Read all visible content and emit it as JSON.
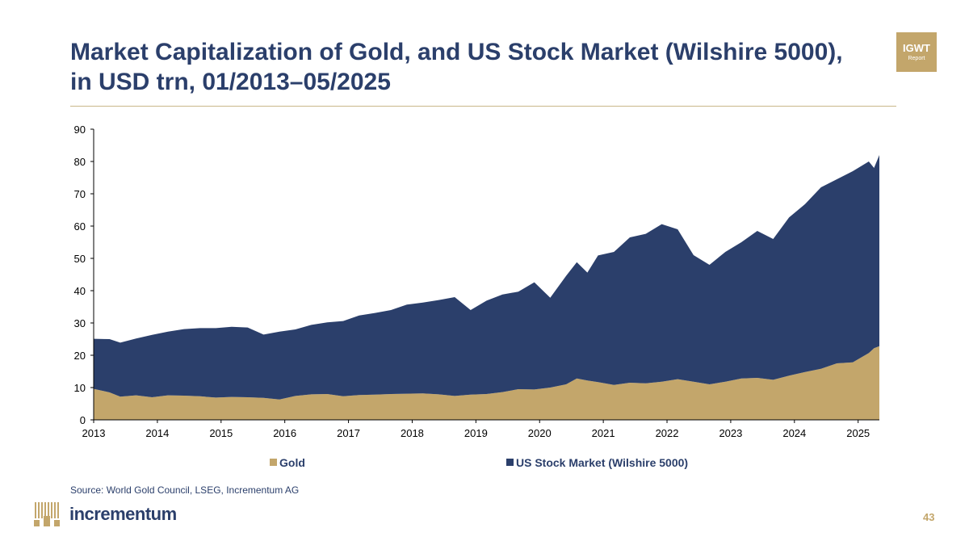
{
  "header": {
    "title": "Market Capitalization of Gold, and US Stock Market (Wilshire 5000), in USD trn, 01/2013–05/2025",
    "badge_line1": "IGWT",
    "badge_line2": "Report"
  },
  "footer": {
    "source": "Source: World Gold Council, LSEG, Incrementum AG",
    "brand": "incrementum",
    "page_number": "43"
  },
  "colors": {
    "gold": "#c3a66b",
    "stock": "#2b3f6b",
    "title": "#2b3f6b",
    "accent": "#c3a66b"
  },
  "chart_data": {
    "type": "area",
    "stacked": true,
    "title": "Market Capitalization of Gold, and US Stock Market (Wilshire 5000), in USD trn, 01/2013–05/2025",
    "xlabel": "",
    "ylabel": "",
    "ylim": [
      0,
      90
    ],
    "yticks": [
      0,
      10,
      20,
      30,
      40,
      50,
      60,
      70,
      80,
      90
    ],
    "x_range": [
      "2013-01",
      "2025-05"
    ],
    "xticks": [
      "2013",
      "2014",
      "2015",
      "2016",
      "2017",
      "2018",
      "2019",
      "2020",
      "2021",
      "2022",
      "2023",
      "2024",
      "2025"
    ],
    "legend_position": "bottom",
    "grid": false,
    "series": [
      {
        "name": "Gold",
        "color": "#c3a66b",
        "points": [
          [
            "2013-01",
            9.6
          ],
          [
            "2013-04",
            8.5
          ],
          [
            "2013-06",
            7.2
          ],
          [
            "2013-09",
            7.6
          ],
          [
            "2013-12",
            7.0
          ],
          [
            "2014-03",
            7.6
          ],
          [
            "2014-06",
            7.5
          ],
          [
            "2014-09",
            7.3
          ],
          [
            "2014-12",
            6.9
          ],
          [
            "2015-03",
            7.1
          ],
          [
            "2015-06",
            7.0
          ],
          [
            "2015-09",
            6.8
          ],
          [
            "2015-12",
            6.3
          ],
          [
            "2016-03",
            7.4
          ],
          [
            "2016-06",
            7.9
          ],
          [
            "2016-09",
            8.0
          ],
          [
            "2016-12",
            7.3
          ],
          [
            "2017-03",
            7.7
          ],
          [
            "2017-06",
            7.8
          ],
          [
            "2017-09",
            8.0
          ],
          [
            "2017-12",
            8.1
          ],
          [
            "2018-03",
            8.2
          ],
          [
            "2018-06",
            7.9
          ],
          [
            "2018-09",
            7.4
          ],
          [
            "2018-12",
            7.8
          ],
          [
            "2019-03",
            8.0
          ],
          [
            "2019-06",
            8.6
          ],
          [
            "2019-09",
            9.5
          ],
          [
            "2019-12",
            9.4
          ],
          [
            "2020-03",
            10.0
          ],
          [
            "2020-06",
            11.0
          ],
          [
            "2020-08",
            12.8
          ],
          [
            "2020-10",
            12.2
          ],
          [
            "2020-12",
            11.7
          ],
          [
            "2021-03",
            10.8
          ],
          [
            "2021-06",
            11.5
          ],
          [
            "2021-09",
            11.3
          ],
          [
            "2021-12",
            11.8
          ],
          [
            "2022-03",
            12.6
          ],
          [
            "2022-06",
            11.8
          ],
          [
            "2022-09",
            11.0
          ],
          [
            "2022-12",
            11.8
          ],
          [
            "2023-03",
            12.8
          ],
          [
            "2023-06",
            13.0
          ],
          [
            "2023-09",
            12.4
          ],
          [
            "2023-12",
            13.7
          ],
          [
            "2024-03",
            14.8
          ],
          [
            "2024-06",
            15.8
          ],
          [
            "2024-09",
            17.5
          ],
          [
            "2024-12",
            17.8
          ],
          [
            "2025-03",
            20.7
          ],
          [
            "2025-04",
            22.2
          ],
          [
            "2025-05",
            22.8
          ]
        ]
      },
      {
        "name": "US Stock Market (Wilshire 5000)",
        "color": "#2b3f6b",
        "points": [
          [
            "2013-01",
            15.5
          ],
          [
            "2013-04",
            16.5
          ],
          [
            "2013-06",
            16.7
          ],
          [
            "2013-09",
            17.6
          ],
          [
            "2013-12",
            19.3
          ],
          [
            "2014-03",
            19.7
          ],
          [
            "2014-06",
            20.6
          ],
          [
            "2014-09",
            21.1
          ],
          [
            "2014-12",
            21.5
          ],
          [
            "2015-03",
            21.7
          ],
          [
            "2015-06",
            21.6
          ],
          [
            "2015-09",
            19.6
          ],
          [
            "2015-12",
            21.0
          ],
          [
            "2016-03",
            20.6
          ],
          [
            "2016-06",
            21.5
          ],
          [
            "2016-09",
            22.2
          ],
          [
            "2016-12",
            23.3
          ],
          [
            "2017-03",
            24.6
          ],
          [
            "2017-06",
            25.3
          ],
          [
            "2017-09",
            26.0
          ],
          [
            "2017-12",
            27.6
          ],
          [
            "2018-03",
            28.1
          ],
          [
            "2018-06",
            29.2
          ],
          [
            "2018-09",
            30.6
          ],
          [
            "2018-12",
            26.2
          ],
          [
            "2019-03",
            28.9
          ],
          [
            "2019-06",
            30.2
          ],
          [
            "2019-09",
            30.2
          ],
          [
            "2019-12",
            33.2
          ],
          [
            "2020-03",
            27.8
          ],
          [
            "2020-06",
            33.6
          ],
          [
            "2020-08",
            36.0
          ],
          [
            "2020-10",
            33.4
          ],
          [
            "2020-12",
            39.2
          ],
          [
            "2021-03",
            41.2
          ],
          [
            "2021-06",
            45.0
          ],
          [
            "2021-09",
            46.3
          ],
          [
            "2021-12",
            48.8
          ],
          [
            "2022-03",
            46.4
          ],
          [
            "2022-06",
            39.2
          ],
          [
            "2022-09",
            37.0
          ],
          [
            "2022-12",
            40.2
          ],
          [
            "2023-03",
            42.2
          ],
          [
            "2023-06",
            45.5
          ],
          [
            "2023-09",
            43.6
          ],
          [
            "2023-12",
            49.0
          ],
          [
            "2024-03",
            52.0
          ],
          [
            "2024-06",
            56.2
          ],
          [
            "2024-09",
            57.0
          ],
          [
            "2024-12",
            59.2
          ],
          [
            "2025-03",
            59.3
          ],
          [
            "2025-04",
            55.8
          ],
          [
            "2025-05",
            59.2
          ]
        ]
      }
    ]
  }
}
